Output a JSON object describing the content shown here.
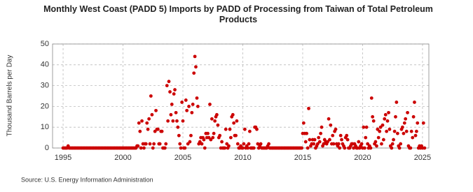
{
  "chart_data": {
    "type": "scatter",
    "title": "Monthly West Coast (PADD 5) Imports by PADD of Processing from Taiwan of Total Petroleum Products",
    "y_label": "Thousand Barrels per Day",
    "source": "Source: U.S. Energy Information Administration",
    "color": "#cc0000",
    "grid": true,
    "xlim": [
      1994.12,
      2025.53
    ],
    "xticks": [
      1995,
      2000,
      2005,
      2010,
      2015,
      2020,
      2025
    ],
    "ylim": [
      0,
      50
    ],
    "yticks": [
      0,
      10,
      20,
      30,
      40,
      50
    ],
    "x": [
      1995.0,
      1995.08,
      1995.17,
      1995.25,
      1995.33,
      1995.42,
      1995.5,
      1995.58,
      1995.67,
      1995.75,
      1995.83,
      1995.92,
      1996.0,
      1996.08,
      1996.17,
      1996.25,
      1996.33,
      1996.42,
      1996.5,
      1996.58,
      1996.67,
      1996.75,
      1996.83,
      1996.92,
      1997.0,
      1997.08,
      1997.17,
      1997.25,
      1997.33,
      1997.42,
      1997.5,
      1997.58,
      1997.67,
      1997.75,
      1997.83,
      1997.92,
      1998.0,
      1998.08,
      1998.17,
      1998.25,
      1998.33,
      1998.42,
      1998.5,
      1998.58,
      1998.67,
      1998.75,
      1998.83,
      1998.92,
      1999.0,
      1999.08,
      1999.17,
      1999.25,
      1999.33,
      1999.42,
      1999.5,
      1999.58,
      1999.67,
      1999.75,
      1999.83,
      1999.92,
      2000.0,
      2000.08,
      2000.17,
      2000.25,
      2000.33,
      2000.42,
      2000.5,
      2000.58,
      2000.67,
      2000.75,
      2000.83,
      2000.92,
      2001.0,
      2001.08,
      2001.17,
      2001.25,
      2001.33,
      2001.42,
      2001.5,
      2001.58,
      2001.67,
      2001.75,
      2001.83,
      2001.92,
      2002.0,
      2002.08,
      2002.17,
      2002.25,
      2002.33,
      2002.42,
      2002.5,
      2002.58,
      2002.67,
      2002.75,
      2002.83,
      2002.92,
      2003.0,
      2003.08,
      2003.17,
      2003.25,
      2003.33,
      2003.42,
      2003.5,
      2003.58,
      2003.67,
      2003.75,
      2003.83,
      2003.92,
      2004.0,
      2004.08,
      2004.17,
      2004.25,
      2004.33,
      2004.42,
      2004.5,
      2004.58,
      2004.67,
      2004.75,
      2004.83,
      2004.92,
      2005.0,
      2005.08,
      2005.17,
      2005.25,
      2005.33,
      2005.42,
      2005.5,
      2005.58,
      2005.67,
      2005.75,
      2005.83,
      2005.92,
      2006.0,
      2006.08,
      2006.17,
      2006.25,
      2006.33,
      2006.42,
      2006.5,
      2006.58,
      2006.67,
      2006.75,
      2006.83,
      2006.92,
      2007.0,
      2007.08,
      2007.17,
      2007.25,
      2007.33,
      2007.42,
      2007.5,
      2007.58,
      2007.67,
      2007.75,
      2007.83,
      2007.92,
      2008.0,
      2008.08,
      2008.17,
      2008.25,
      2008.33,
      2008.42,
      2008.5,
      2008.58,
      2008.67,
      2008.75,
      2008.83,
      2008.92,
      2009.0,
      2009.08,
      2009.17,
      2009.25,
      2009.33,
      2009.42,
      2009.5,
      2009.58,
      2009.67,
      2009.75,
      2009.83,
      2009.92,
      2010.0,
      2010.08,
      2010.17,
      2010.25,
      2010.33,
      2010.42,
      2010.5,
      2010.58,
      2010.67,
      2010.75,
      2010.83,
      2010.92,
      2011.0,
      2011.08,
      2011.17,
      2011.25,
      2011.33,
      2011.42,
      2011.5,
      2011.58,
      2011.67,
      2011.75,
      2011.83,
      2011.92,
      2012.0,
      2012.08,
      2012.17,
      2012.25,
      2012.33,
      2012.42,
      2012.5,
      2012.58,
      2012.67,
      2012.75,
      2012.83,
      2012.92,
      2013.0,
      2013.08,
      2013.17,
      2013.25,
      2013.33,
      2013.42,
      2013.5,
      2013.58,
      2013.67,
      2013.75,
      2013.83,
      2013.92,
      2014.0,
      2014.08,
      2014.17,
      2014.25,
      2014.33,
      2014.42,
      2014.5,
      2014.58,
      2014.67,
      2014.75,
      2014.83,
      2014.92,
      2015.0,
      2015.08,
      2015.17,
      2015.25,
      2015.33,
      2015.42,
      2015.5,
      2015.58,
      2015.67,
      2015.75,
      2015.83,
      2015.92,
      2016.0,
      2016.08,
      2016.17,
      2016.25,
      2016.33,
      2016.42,
      2016.5,
      2016.58,
      2016.67,
      2016.75,
      2016.83,
      2016.92,
      2017.0,
      2017.08,
      2017.17,
      2017.25,
      2017.33,
      2017.42,
      2017.5,
      2017.58,
      2017.67,
      2017.75,
      2017.83,
      2017.92,
      2018.0,
      2018.08,
      2018.17,
      2018.25,
      2018.33,
      2018.42,
      2018.5,
      2018.58,
      2018.67,
      2018.75,
      2018.83,
      2018.92,
      2019.0,
      2019.08,
      2019.17,
      2019.25,
      2019.33,
      2019.42,
      2019.5,
      2019.58,
      2019.67,
      2019.75,
      2019.83,
      2019.92,
      2020.0,
      2020.08,
      2020.17,
      2020.25,
      2020.33,
      2020.42,
      2020.5,
      2020.58,
      2020.67,
      2020.75,
      2020.83,
      2020.92,
      2021.0,
      2021.08,
      2021.17,
      2021.25,
      2021.33,
      2021.42,
      2021.5,
      2021.58,
      2021.67,
      2021.75,
      2021.83,
      2021.92,
      2022.0,
      2022.08,
      2022.17,
      2022.25,
      2022.33,
      2022.42,
      2022.5,
      2022.58,
      2022.67,
      2022.75,
      2022.83,
      2022.92,
      2023.0,
      2023.08,
      2023.17,
      2023.25,
      2023.33,
      2023.42,
      2023.5,
      2023.58,
      2023.67,
      2023.75,
      2023.83,
      2023.92,
      2024.0,
      2024.08,
      2024.17,
      2024.25,
      2024.33,
      2024.42,
      2024.5,
      2024.58,
      2024.67,
      2024.75,
      2024.83,
      2024.92,
      2025.0,
      2025.08,
      2025.17
    ],
    "values": [
      0,
      0,
      0,
      0,
      0,
      1,
      0,
      0,
      0,
      0,
      0,
      0,
      0,
      0,
      0,
      0,
      0,
      0,
      0,
      0,
      0,
      0,
      0,
      0,
      0,
      0,
      0,
      0,
      0,
      0,
      0,
      0,
      0,
      0,
      0,
      0,
      0,
      0,
      0,
      0,
      0,
      0,
      0,
      0,
      0,
      0,
      0,
      0,
      0,
      0,
      0,
      0,
      0,
      0,
      0,
      0,
      0,
      0,
      0,
      0,
      0,
      0,
      0,
      0,
      0,
      0,
      0,
      0,
      0,
      0,
      0,
      0,
      0,
      0,
      1,
      1,
      12,
      8,
      0,
      13,
      2,
      0,
      2,
      2,
      12,
      9,
      14,
      2,
      25,
      16,
      0,
      2,
      8,
      18,
      9,
      9,
      2,
      2,
      8,
      8,
      0,
      0,
      0,
      2,
      30,
      13,
      32,
      27,
      16,
      21,
      13,
      26,
      28,
      17,
      13,
      10,
      6,
      2,
      0,
      22,
      13,
      0,
      0,
      23,
      18,
      2,
      20,
      3,
      6,
      17,
      21,
      36,
      44,
      39,
      24,
      20,
      2,
      3,
      5,
      2,
      5,
      4,
      0,
      7,
      5,
      7,
      5,
      21,
      4,
      14,
      5,
      7,
      13,
      15,
      16,
      11,
      5,
      6,
      0,
      3,
      0,
      0,
      0,
      9,
      2,
      0,
      1,
      9,
      5,
      15,
      16,
      12,
      6,
      6,
      13,
      2,
      0,
      0,
      1,
      0,
      0,
      2,
      9,
      0,
      1,
      0,
      2,
      8,
      0,
      0,
      0,
      0,
      10,
      10,
      9,
      2,
      0,
      1,
      2,
      0,
      0,
      0,
      0,
      0,
      0,
      1,
      2,
      0,
      0,
      0,
      0,
      0,
      0,
      0,
      0,
      0,
      0,
      0,
      0,
      0,
      0,
      0,
      0,
      0,
      0,
      0,
      0,
      0,
      0,
      0,
      0,
      0,
      0,
      0,
      0,
      0,
      0,
      0,
      0,
      0,
      7,
      12,
      7,
      3,
      7,
      0,
      19,
      4,
      1,
      2,
      4,
      2,
      4,
      0,
      1,
      2,
      5,
      3,
      7,
      10,
      1,
      2,
      4,
      3,
      2,
      3,
      14,
      4,
      11,
      2,
      6,
      2,
      8,
      9,
      2,
      1,
      2,
      0,
      6,
      4,
      2,
      1,
      0,
      5,
      6,
      4,
      0,
      0,
      1,
      2,
      2,
      0,
      2,
      1,
      0,
      0,
      3,
      0,
      1,
      2,
      0,
      10,
      0,
      5,
      10,
      2,
      0,
      1,
      0,
      24,
      15,
      13,
      2,
      3,
      1,
      9,
      5,
      8,
      10,
      2,
      11,
      4,
      14,
      16,
      8,
      13,
      17,
      9,
      1,
      0,
      2,
      4,
      8,
      15,
      22,
      7,
      1,
      0,
      2,
      9,
      10,
      7,
      12,
      14,
      8,
      17,
      1,
      0,
      0,
      8,
      5,
      15,
      22,
      6,
      8,
      12,
      0,
      1,
      0,
      1,
      0,
      12,
      0
    ]
  }
}
